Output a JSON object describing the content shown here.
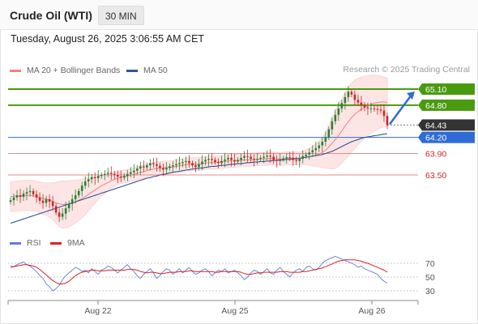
{
  "header": {
    "instrument": "Crude Oil (WTI)",
    "timeframe": "30 MIN"
  },
  "datetime": "Tuesday, August 26, 2025 3:06:55 AM CET",
  "credit": "Research © 2025 Trading Central",
  "colors": {
    "resistance": "#4a9a10",
    "support_line": "#e88a8a",
    "pivot": "#2e6bd6",
    "last_price": "#333333",
    "ma20": "#f08080",
    "bollinger_fill": "#fde3e3",
    "ma50": "#2f5597",
    "candle_up": "#2e7d32",
    "candle_down": "#c62828",
    "rsi": "#5b7fd6",
    "rsi_ma": "#e02020",
    "arrow": "#2e6bd6"
  },
  "chart_data": [
    {
      "type": "candlestick",
      "title": "Crude Oil (WTI)",
      "legend": [
        {
          "name": "MA 20 + Bollinger Bands",
          "color": "#f08080"
        },
        {
          "name": "MA 50",
          "color": "#2f5597"
        }
      ],
      "x_ticks": [
        "Aug 22",
        "Aug 25",
        "Aug 26"
      ],
      "ylim": [
        62.5,
        65.5
      ],
      "levels": [
        {
          "value": 65.1,
          "label": "65.10",
          "kind": "resistance"
        },
        {
          "value": 64.8,
          "label": "64.80",
          "kind": "resistance"
        },
        {
          "value": 64.43,
          "label": "64.43",
          "kind": "last"
        },
        {
          "value": 64.2,
          "label": "64.20",
          "kind": "pivot"
        },
        {
          "value": 63.9,
          "label": "63.90",
          "kind": "support"
        },
        {
          "value": 63.5,
          "label": "63.50",
          "kind": "support"
        }
      ],
      "close": [
        63.03,
        63.08,
        63.12,
        63.09,
        63.15,
        63.18,
        63.2,
        63.14,
        63.08,
        63.02,
        62.98,
        63.05,
        63.0,
        62.92,
        62.8,
        62.72,
        62.78,
        62.88,
        62.96,
        63.05,
        63.12,
        63.2,
        63.3,
        63.38,
        63.42,
        63.46,
        63.44,
        63.48,
        63.5,
        63.52,
        63.54,
        63.52,
        63.5,
        63.47,
        63.45,
        63.48,
        63.52,
        63.55,
        63.58,
        63.62,
        63.66,
        63.64,
        63.68,
        63.72,
        63.7,
        63.67,
        63.63,
        63.6,
        63.63,
        63.66,
        63.68,
        63.7,
        63.72,
        63.74,
        63.76,
        63.72,
        63.68,
        63.65,
        63.7,
        63.75,
        63.78,
        63.8,
        63.78,
        63.74,
        63.72,
        63.76,
        63.79,
        63.82,
        63.78,
        63.75,
        63.78,
        63.82,
        63.85,
        63.84,
        63.8,
        63.78,
        63.8,
        63.82,
        63.84,
        63.86,
        63.84,
        63.78,
        63.76,
        63.79,
        63.81,
        63.83,
        63.82,
        63.78,
        63.76,
        63.8,
        63.85,
        63.88,
        63.92,
        63.96,
        64.0,
        64.05,
        64.12,
        64.2,
        64.35,
        64.5,
        64.62,
        64.74,
        64.84,
        64.95,
        65.05,
        65.0,
        64.9,
        64.85,
        64.8,
        64.76,
        64.74,
        64.74,
        64.73,
        64.72,
        64.7,
        64.6,
        64.43
      ],
      "ma20": [
        63.1,
        63.1,
        63.11,
        63.11,
        63.12,
        63.12,
        63.12,
        63.11,
        63.1,
        63.08,
        63.06,
        63.05,
        63.03,
        63.01,
        62.98,
        62.96,
        62.95,
        62.95,
        62.96,
        62.98,
        63.0,
        63.03,
        63.06,
        63.1,
        63.14,
        63.18,
        63.22,
        63.26,
        63.3,
        63.33,
        63.36,
        63.39,
        63.42,
        63.44,
        63.46,
        63.47,
        63.48,
        63.5,
        63.51,
        63.53,
        63.55,
        63.56,
        63.58,
        63.6,
        63.61,
        63.62,
        63.63,
        63.63,
        63.64,
        63.64,
        63.65,
        63.66,
        63.67,
        63.68,
        63.69,
        63.7,
        63.7,
        63.7,
        63.7,
        63.71,
        63.72,
        63.73,
        63.73,
        63.73,
        63.74,
        63.74,
        63.75,
        63.76,
        63.76,
        63.76,
        63.77,
        63.77,
        63.78,
        63.78,
        63.78,
        63.79,
        63.79,
        63.8,
        63.8,
        63.8,
        63.81,
        63.81,
        63.8,
        63.8,
        63.8,
        63.81,
        63.81,
        63.81,
        63.81,
        63.81,
        63.82,
        63.83,
        63.84,
        63.85,
        63.87,
        63.89,
        63.92,
        63.96,
        64.02,
        64.09,
        64.16,
        64.24,
        64.32,
        64.41,
        64.49,
        64.57,
        64.63,
        64.68,
        64.72,
        64.76,
        64.79,
        64.82,
        64.84,
        64.85,
        64.86,
        64.86,
        64.85
      ],
      "ma50": [
        62.6,
        62.62,
        62.64,
        62.66,
        62.68,
        62.7,
        62.72,
        62.74,
        62.76,
        62.78,
        62.8,
        62.82,
        62.84,
        62.86,
        62.88,
        62.9,
        62.92,
        62.94,
        62.96,
        62.98,
        63.0,
        63.02,
        63.04,
        63.06,
        63.08,
        63.1,
        63.12,
        63.14,
        63.16,
        63.18,
        63.2,
        63.22,
        63.24,
        63.26,
        63.28,
        63.3,
        63.32,
        63.34,
        63.36,
        63.38,
        63.4,
        63.42,
        63.44,
        63.45,
        63.47,
        63.48,
        63.5,
        63.51,
        63.52,
        63.54,
        63.55,
        63.56,
        63.57,
        63.58,
        63.59,
        63.6,
        63.61,
        63.62,
        63.63,
        63.63,
        63.64,
        63.65,
        63.66,
        63.66,
        63.67,
        63.68,
        63.68,
        63.69,
        63.7,
        63.7,
        63.71,
        63.71,
        63.72,
        63.73,
        63.73,
        63.74,
        63.74,
        63.75,
        63.75,
        63.76,
        63.76,
        63.77,
        63.77,
        63.78,
        63.78,
        63.79,
        63.79,
        63.8,
        63.8,
        63.81,
        63.82,
        63.83,
        63.84,
        63.85,
        63.86,
        63.87,
        63.88,
        63.9,
        63.92,
        63.94,
        63.97,
        64.0,
        64.03,
        64.06,
        64.09,
        64.12,
        64.14,
        64.16,
        64.18,
        64.2,
        64.21,
        64.22,
        64.23,
        64.24,
        64.25,
        64.26,
        64.27
      ],
      "bb_width": [
        0.28,
        0.28,
        0.28,
        0.28,
        0.28,
        0.28,
        0.28,
        0.28,
        0.28,
        0.29,
        0.3,
        0.3,
        0.32,
        0.34,
        0.38,
        0.42,
        0.44,
        0.44,
        0.43,
        0.42,
        0.4,
        0.38,
        0.36,
        0.34,
        0.3,
        0.28,
        0.24,
        0.22,
        0.2,
        0.18,
        0.16,
        0.14,
        0.13,
        0.12,
        0.12,
        0.12,
        0.12,
        0.12,
        0.12,
        0.12,
        0.12,
        0.12,
        0.12,
        0.12,
        0.12,
        0.12,
        0.12,
        0.12,
        0.12,
        0.12,
        0.12,
        0.12,
        0.12,
        0.12,
        0.12,
        0.12,
        0.12,
        0.12,
        0.12,
        0.12,
        0.12,
        0.12,
        0.12,
        0.12,
        0.12,
        0.12,
        0.12,
        0.12,
        0.12,
        0.12,
        0.12,
        0.12,
        0.12,
        0.12,
        0.12,
        0.12,
        0.12,
        0.12,
        0.12,
        0.12,
        0.12,
        0.12,
        0.12,
        0.12,
        0.12,
        0.12,
        0.12,
        0.12,
        0.12,
        0.12,
        0.13,
        0.14,
        0.16,
        0.18,
        0.21,
        0.24,
        0.28,
        0.33,
        0.4,
        0.48,
        0.54,
        0.58,
        0.6,
        0.62,
        0.64,
        0.64,
        0.64,
        0.62,
        0.6,
        0.58,
        0.56,
        0.54,
        0.52,
        0.5,
        0.48,
        0.46,
        0.46
      ],
      "projection": {
        "from": 64.43,
        "to": 65.1
      }
    },
    {
      "type": "line",
      "legend": [
        {
          "name": "RSI",
          "color": "#5b7fd6"
        },
        {
          "name": "9MA",
          "color": "#e02020"
        }
      ],
      "ylim": [
        20,
        80
      ],
      "y_ticks": [
        "70",
        "50",
        "30"
      ],
      "rsi": [
        66,
        65,
        68,
        70,
        72,
        68,
        66,
        62,
        58,
        52,
        48,
        40,
        36,
        30,
        33,
        38,
        46,
        52,
        56,
        60,
        64,
        62,
        58,
        60,
        56,
        62,
        58,
        54,
        60,
        62,
        66,
        64,
        60,
        56,
        60,
        64,
        68,
        62,
        58,
        52,
        48,
        54,
        58,
        62,
        56,
        48,
        52,
        58,
        62,
        60,
        54,
        58,
        62,
        56,
        60,
        64,
        58,
        54,
        56,
        60,
        62,
        58,
        52,
        56,
        60,
        58,
        62,
        56,
        58,
        60,
        56,
        52,
        46,
        50,
        56,
        60,
        58,
        54,
        58,
        62,
        56,
        54,
        60,
        64,
        58,
        54,
        50,
        56,
        60,
        62,
        58,
        64,
        66,
        62,
        60,
        64,
        70,
        74,
        76,
        78,
        80,
        78,
        76,
        74,
        72,
        70,
        68,
        64,
        66,
        62,
        60,
        58,
        56,
        54,
        48,
        44,
        41
      ],
      "ma9": [
        64,
        65,
        66,
        67,
        68,
        68,
        67,
        66,
        64,
        61,
        57,
        53,
        49,
        45,
        42,
        40,
        40,
        41,
        44,
        48,
        52,
        55,
        57,
        58,
        59,
        60,
        60,
        59,
        59,
        59,
        60,
        60,
        60,
        60,
        60,
        60,
        61,
        61,
        61,
        60,
        58,
        57,
        56,
        57,
        57,
        56,
        55,
        55,
        56,
        57,
        57,
        57,
        58,
        58,
        58,
        59,
        59,
        58,
        58,
        58,
        58,
        58,
        58,
        57,
        57,
        58,
        58,
        58,
        58,
        58,
        58,
        57,
        55,
        54,
        54,
        55,
        56,
        56,
        57,
        57,
        57,
        57,
        57,
        58,
        58,
        58,
        57,
        57,
        57,
        57,
        58,
        58,
        59,
        60,
        61,
        62,
        63,
        65,
        67,
        69,
        71,
        73,
        74,
        75,
        75,
        75,
        75,
        74,
        73,
        71,
        70,
        68,
        66,
        64,
        62,
        60,
        57
      ]
    }
  ]
}
